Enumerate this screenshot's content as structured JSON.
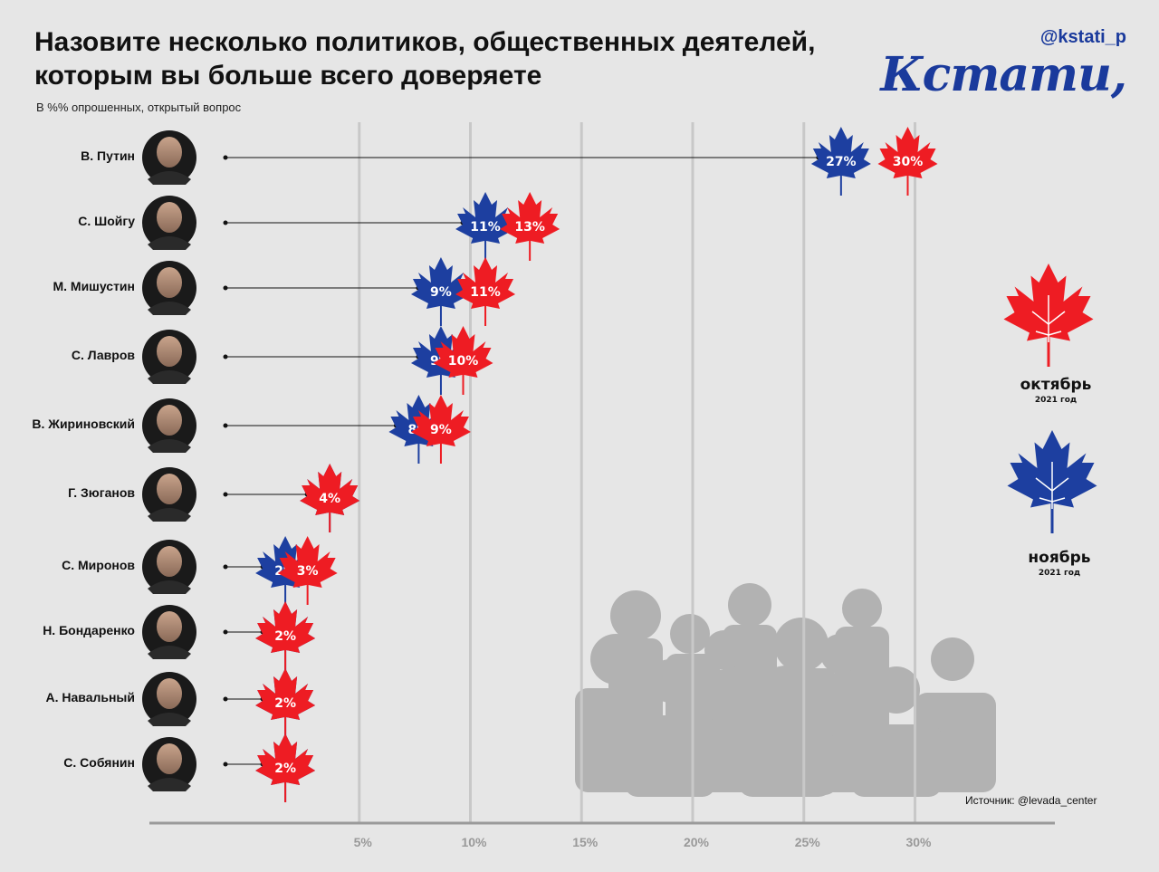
{
  "header": {
    "title": "Назовите несколько политиков, общественных деятелей, которым вы больше всего доверяете",
    "subtitle": "В %% опрошенных, открытый вопрос",
    "handle": "@kstati_p",
    "logo": "Кстати,"
  },
  "source": "Источник: @levada_center",
  "colors": {
    "october": "#ee1c23",
    "november": "#1d3fa0",
    "grid": "#c8c8c8",
    "axis": "#9a9a9a",
    "crowd": "#b2b2b2"
  },
  "legend": [
    {
      "key": "october",
      "label": "октябрь",
      "sub": "2021 год",
      "color": "#ee1c23"
    },
    {
      "key": "november",
      "label": "ноябрь",
      "sub": "2021 год",
      "color": "#1d3fa0"
    }
  ],
  "icons": {
    "marker": "maple-leaf-icon",
    "portrait": "person-portrait-icon",
    "background": "crowd-silhouette-icon"
  },
  "chart_data": {
    "type": "scatter",
    "orientation": "horizontal",
    "title": "Назовите несколько политиков, общественных деятелей, которым вы больше всего доверяете",
    "subtitle": "В %% опрошенных, открытый вопрос",
    "categories": [
      "В. Путин",
      "С. Шойгу",
      "М. Мишустин",
      "С. Лавров",
      "В. Жириновский",
      "Г. Зюганов",
      "С. Миронов",
      "Н. Бондаренко",
      "А. Навальный",
      "С. Собянин"
    ],
    "series": [
      {
        "name": "октябрь",
        "values": [
          30,
          13,
          11,
          10,
          9,
          4,
          3,
          2,
          2,
          2
        ]
      },
      {
        "name": "ноябрь",
        "values": [
          27,
          11,
          9,
          9,
          8,
          4,
          2,
          2,
          2,
          2
        ]
      }
    ],
    "value_labels": {
      "октябрь": [
        "30%",
        "13%",
        "11%",
        "10%",
        "9%",
        "4%",
        "3%",
        "2%",
        "2%",
        "2%"
      ],
      "ноябрь": [
        "27%",
        "11%",
        "9%",
        "9%",
        "8%",
        "",
        "2%",
        "",
        "",
        ""
      ]
    },
    "xticks": [
      "5%",
      "10%",
      "15%",
      "20%",
      "25%",
      "30%"
    ],
    "xlim": [
      0,
      30
    ],
    "grid": true,
    "legend_position": "right"
  }
}
